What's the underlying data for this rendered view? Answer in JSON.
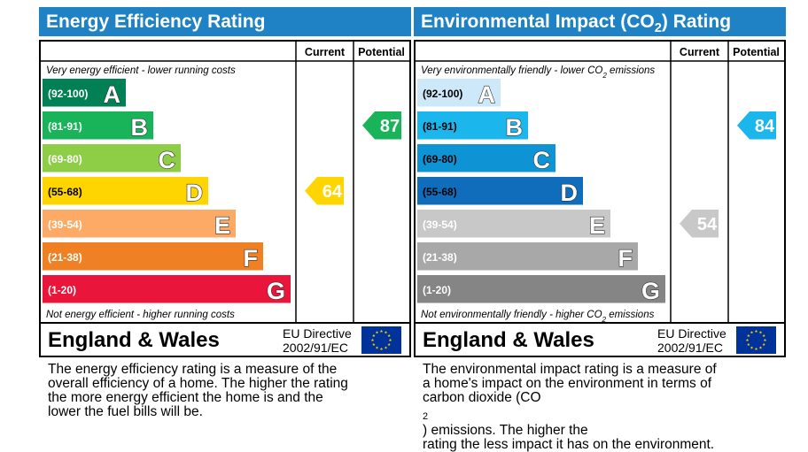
{
  "chart_data": [
    {
      "type": "bar",
      "title": "Energy Efficiency Rating",
      "header": {
        "current": "Current",
        "potential": "Potential"
      },
      "top_note": "Very energy efficient - lower running costs",
      "bottom_note": "Not energy efficient - higher running costs",
      "bands": [
        {
          "range": "(92-100)",
          "letter": "A",
          "color": "#008054"
        },
        {
          "range": "(81-91)",
          "letter": "B",
          "color": "#19b459"
        },
        {
          "range": "(69-80)",
          "letter": "C",
          "color": "#8dce46"
        },
        {
          "range": "(55-68)",
          "letter": "D",
          "color": "#ffd500"
        },
        {
          "range": "(39-54)",
          "letter": "E",
          "color": "#fcaa65"
        },
        {
          "range": "(21-38)",
          "letter": "F",
          "color": "#ef8023"
        },
        {
          "range": "(1-20)",
          "letter": "G",
          "color": "#e9153b"
        }
      ],
      "current": {
        "value": 64,
        "band": "D",
        "color": "#ffd500"
      },
      "potential": {
        "value": 87,
        "band": "B",
        "color": "#19b459"
      },
      "footer": {
        "region": "England & Wales",
        "directive_line1": "EU Directive",
        "directive_line2": "2002/91/EC"
      },
      "description": [
        "The energy efficiency rating is a measure of the",
        "overall efficiency of a home. The higher the rating",
        "the more energy efficient the home is and the",
        "lower the fuel bills will be."
      ]
    },
    {
      "type": "bar",
      "title_main": "Environmental Impact (CO",
      "title_sub": "2",
      "title_end": ") Rating",
      "header": {
        "current": "Current",
        "potential": "Potential"
      },
      "top_note": "Very environmentally friendly - lower CO",
      "top_note_sub": "2",
      "top_note_end": " emissions",
      "bottom_note": "Not environmentally friendly - higher CO",
      "bottom_note_sub": "2",
      "bottom_note_end": " emissions",
      "bands": [
        {
          "range": "(92-100)",
          "letter": "A",
          "color": "#cde9f9"
        },
        {
          "range": "(81-91)",
          "letter": "B",
          "color": "#1ab6ec"
        },
        {
          "range": "(69-80)",
          "letter": "C",
          "color": "#0e93d5"
        },
        {
          "range": "(55-68)",
          "letter": "D",
          "color": "#0f6dbc"
        },
        {
          "range": "(39-54)",
          "letter": "E",
          "color": "#c8c8c8"
        },
        {
          "range": "(21-38)",
          "letter": "F",
          "color": "#a8a8a8"
        },
        {
          "range": "(1-20)",
          "letter": "G",
          "color": "#858585"
        }
      ],
      "current": {
        "value": 54,
        "band": "E",
        "color": "#c8c8c8"
      },
      "potential": {
        "value": 84,
        "band": "B",
        "color": "#1ab6ec"
      },
      "footer": {
        "region": "England & Wales",
        "directive_line1": "EU Directive",
        "directive_line2": "2002/91/EC"
      },
      "description_line1": "The environmental impact rating is a measure of",
      "description_line2": "a home's impact on the environment in terms of",
      "description_line3_start": "carbon dioxide (CO",
      "description_line3_sub": "2",
      "description_line3_end": ") emissions. The higher the",
      "description_line4": "rating the less impact it has on the environment."
    }
  ]
}
